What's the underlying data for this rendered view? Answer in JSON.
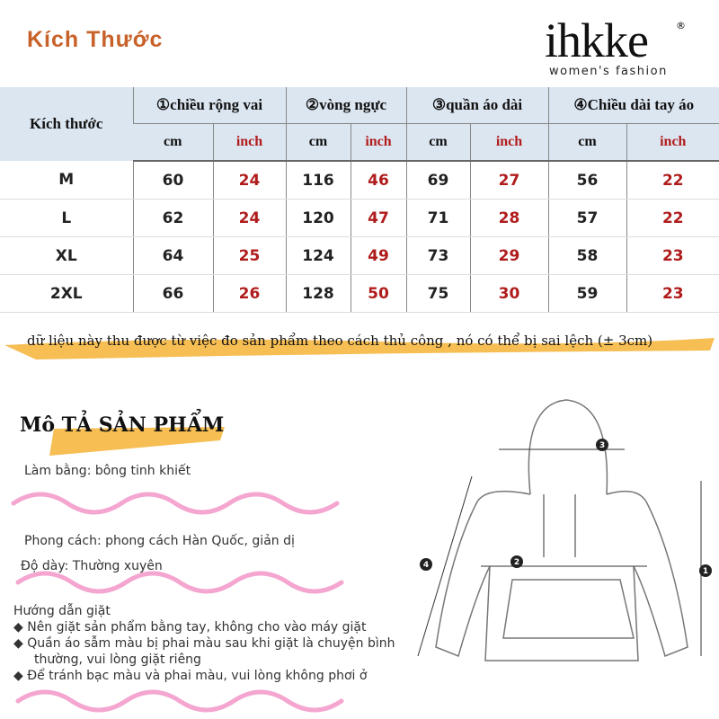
{
  "header": {
    "title": "Kích Thước",
    "logo": "ihkke",
    "logo_tagline": "women's fashion",
    "logo_mark": "®"
  },
  "table": {
    "size_header": "Kích thước",
    "groups": [
      "①chiều rộng vai",
      "②vòng ngực",
      "③quần áo dài",
      "④Chiều dài tay áo"
    ],
    "units": [
      "cm",
      "inch"
    ],
    "rows": [
      {
        "size": "M",
        "values": [
          "60",
          "24",
          "116",
          "46",
          "69",
          "27",
          "56",
          "22"
        ]
      },
      {
        "size": "L",
        "values": [
          "62",
          "24",
          "120",
          "47",
          "71",
          "28",
          "57",
          "22"
        ]
      },
      {
        "size": "XL",
        "values": [
          "64",
          "25",
          "124",
          "49",
          "73",
          "29",
          "58",
          "23"
        ]
      },
      {
        "size": "2XL",
        "values": [
          "66",
          "26",
          "128",
          "50",
          "75",
          "30",
          "59",
          "23"
        ]
      }
    ]
  },
  "note": "dữ liệu này thu được từ việc đo sản phẩm theo cách thủ công ,   nó có thể bị sai lệch (± 3cm)",
  "description": {
    "title": "Mô TẢ SẢN PHẨM",
    "material": "Làm bằng: bông tinh khiết",
    "style": "Phong cách: phong cách Hàn Quốc, giản dị",
    "thickness": "Độ dày: Thường xuyên",
    "wash_title": "Hướng dẫn giặt",
    "wash": [
      "Nên giặt sản phẩm bằng tay, không cho vào máy giặt",
      "Quần áo sẫm màu bị phai màu sau khi giặt là chuyện bình",
      "thường, vui lòng giặt riêng",
      "Để tránh bạc màu và phai màu, vui lòng không phơi ở"
    ]
  },
  "diagram": {
    "markers": [
      "1",
      "2",
      "3",
      "4"
    ]
  },
  "colors": {
    "title": "#c8622a",
    "header_bg": "#dce6f1",
    "inch": "#b01c1c",
    "highlight": "#f5b335",
    "wave": "#f4a6d0"
  }
}
